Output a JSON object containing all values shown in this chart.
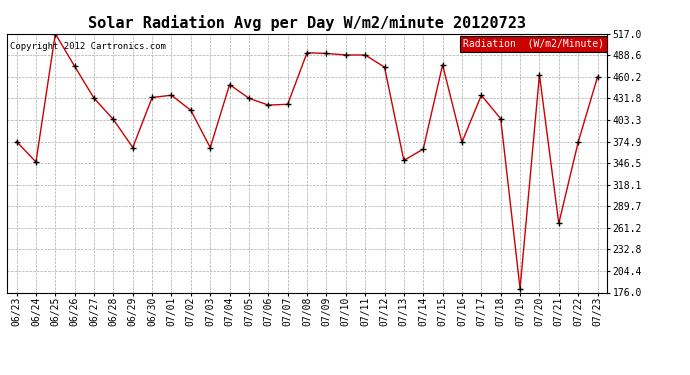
{
  "title": "Solar Radiation Avg per Day W/m2/minute 20120723",
  "copyright": "Copyright 2012 Cartronics.com",
  "legend_label": "Radiation  (W/m2/Minute)",
  "dates": [
    "06/23",
    "06/24",
    "06/25",
    "06/26",
    "06/27",
    "06/28",
    "06/29",
    "06/30",
    "07/01",
    "07/02",
    "07/03",
    "07/04",
    "07/05",
    "07/06",
    "07/07",
    "07/08",
    "07/09",
    "07/10",
    "07/11",
    "07/12",
    "07/13",
    "07/14",
    "07/15",
    "07/16",
    "07/17",
    "07/18",
    "07/19",
    "07/20",
    "07/21",
    "07/22",
    "07/23"
  ],
  "values": [
    374.9,
    348.0,
    517.0,
    474.0,
    432.0,
    404.0,
    367.0,
    433.0,
    436.0,
    416.0,
    367.0,
    450.0,
    432.0,
    423.0,
    424.0,
    492.0,
    491.0,
    489.0,
    489.0,
    473.0,
    350.0,
    365.0,
    476.0,
    374.0,
    436.0,
    405.0,
    181.0,
    463.0,
    267.0,
    374.0,
    460.0
  ],
  "ylim": [
    176.0,
    517.0
  ],
  "yticks": [
    176.0,
    204.4,
    232.8,
    261.2,
    289.7,
    318.1,
    346.5,
    374.9,
    403.3,
    431.8,
    460.2,
    488.6,
    517.0
  ],
  "line_color": "#cc0000",
  "marker_color": "#000000",
  "bg_color": "#ffffff",
  "grid_color": "#aaaaaa",
  "title_fontsize": 11,
  "tick_fontsize": 7,
  "legend_bg": "#cc0000",
  "legend_text_color": "#ffffff"
}
